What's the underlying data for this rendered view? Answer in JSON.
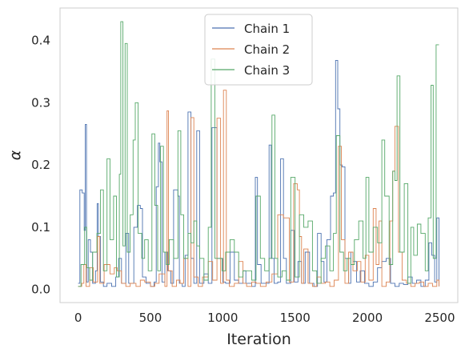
{
  "chart_data": {
    "type": "line",
    "xlabel": "Iteration",
    "ylabel": "α",
    "xlim": [
      -125,
      2625
    ],
    "ylim": [
      -0.021,
      0.452
    ],
    "xticks": [
      0,
      500,
      1000,
      1500,
      2000,
      2500
    ],
    "yticks": [
      0.0,
      0.1,
      0.2,
      0.3,
      0.4
    ],
    "grid": false,
    "legend_position": "top-center",
    "series": [
      {
        "name": "Chain 1",
        "color": "#4c72b0",
        "points": [
          [
            0,
            0.01
          ],
          [
            12,
            0.16
          ],
          [
            28,
            0.155
          ],
          [
            42,
            0.095
          ],
          [
            50,
            0.265
          ],
          [
            58,
            0.012
          ],
          [
            70,
            0.08
          ],
          [
            85,
            0.06
          ],
          [
            100,
            0.01
          ],
          [
            120,
            0.03
          ],
          [
            132,
            0.138
          ],
          [
            140,
            0.085
          ],
          [
            155,
            0.012
          ],
          [
            175,
            0.005
          ],
          [
            200,
            0.01
          ],
          [
            232,
            0.005
          ],
          [
            260,
            0.02
          ],
          [
            280,
            0.05
          ],
          [
            300,
            0.01
          ],
          [
            330,
            0.09
          ],
          [
            350,
            0.01
          ],
          [
            385,
            0.1
          ],
          [
            410,
            0.135
          ],
          [
            430,
            0.13
          ],
          [
            445,
            0.02
          ],
          [
            470,
            0.01
          ],
          [
            500,
            0.005
          ],
          [
            525,
            0.012
          ],
          [
            540,
            0.165
          ],
          [
            555,
            0.235
          ],
          [
            565,
            0.205
          ],
          [
            580,
            0.012
          ],
          [
            600,
            0.06
          ],
          [
            620,
            0.03
          ],
          [
            640,
            0.01
          ],
          [
            660,
            0.16
          ],
          [
            690,
            0.15
          ],
          [
            700,
            0.01
          ],
          [
            720,
            0.005
          ],
          [
            740,
            0.055
          ],
          [
            760,
            0.285
          ],
          [
            780,
            0.05
          ],
          [
            800,
            0.01
          ],
          [
            820,
            0.255
          ],
          [
            840,
            0.01
          ],
          [
            870,
            0.025
          ],
          [
            900,
            0.01
          ],
          [
            925,
            0.26
          ],
          [
            960,
            0.05
          ],
          [
            1000,
            0.012
          ],
          [
            1020,
            0.01
          ],
          [
            1050,
            0.06
          ],
          [
            1080,
            0.015
          ],
          [
            1110,
            0.01
          ],
          [
            1140,
            0.03
          ],
          [
            1160,
            0.01
          ],
          [
            1200,
            0.005
          ],
          [
            1225,
            0.18
          ],
          [
            1240,
            0.04
          ],
          [
            1265,
            0.01
          ],
          [
            1300,
            0.01
          ],
          [
            1320,
            0.232
          ],
          [
            1335,
            0.05
          ],
          [
            1355,
            0.01
          ],
          [
            1380,
            0.012
          ],
          [
            1400,
            0.21
          ],
          [
            1420,
            0.05
          ],
          [
            1440,
            0.01
          ],
          [
            1470,
            0.095
          ],
          [
            1495,
            0.012
          ],
          [
            1520,
            0.045
          ],
          [
            1545,
            0.01
          ],
          [
            1570,
            0.06
          ],
          [
            1600,
            0.01
          ],
          [
            1630,
            0.005
          ],
          [
            1655,
            0.09
          ],
          [
            1680,
            0.045
          ],
          [
            1700,
            0.012
          ],
          [
            1720,
            0.08
          ],
          [
            1745,
            0.15
          ],
          [
            1765,
            0.155
          ],
          [
            1780,
            0.368
          ],
          [
            1795,
            0.29
          ],
          [
            1810,
            0.2
          ],
          [
            1825,
            0.197
          ],
          [
            1845,
            0.05
          ],
          [
            1870,
            0.01
          ],
          [
            1885,
            0.06
          ],
          [
            1900,
            0.045
          ],
          [
            1925,
            0.012
          ],
          [
            1950,
            0.03
          ],
          [
            1980,
            0.01
          ],
          [
            2010,
            0.005
          ],
          [
            2040,
            0.012
          ],
          [
            2070,
            0.035
          ],
          [
            2100,
            0.045
          ],
          [
            2130,
            0.05
          ],
          [
            2160,
            0.01
          ],
          [
            2190,
            0.005
          ],
          [
            2220,
            0.01
          ],
          [
            2250,
            0.008
          ],
          [
            2280,
            0.02
          ],
          [
            2310,
            0.01
          ],
          [
            2340,
            0.015
          ],
          [
            2370,
            0.005
          ],
          [
            2400,
            0.015
          ],
          [
            2425,
            0.075
          ],
          [
            2445,
            0.055
          ],
          [
            2465,
            0.012
          ],
          [
            2480,
            0.115
          ],
          [
            2495,
            0.005
          ]
        ]
      },
      {
        "name": "Chain 2",
        "color": "#dd8452",
        "points": [
          [
            0,
            0.005
          ],
          [
            25,
            0.01
          ],
          [
            40,
            0.04
          ],
          [
            55,
            0.005
          ],
          [
            80,
            0.035
          ],
          [
            105,
            0.012
          ],
          [
            135,
            0.085
          ],
          [
            150,
            0.01
          ],
          [
            180,
            0.04
          ],
          [
            220,
            0.025
          ],
          [
            250,
            0.035
          ],
          [
            270,
            0.03
          ],
          [
            300,
            0.01
          ],
          [
            330,
            0.005
          ],
          [
            360,
            0.01
          ],
          [
            400,
            0.005
          ],
          [
            430,
            0.015
          ],
          [
            460,
            0.012
          ],
          [
            500,
            0.005
          ],
          [
            530,
            0.01
          ],
          [
            560,
            0.025
          ],
          [
            600,
            0.005
          ],
          [
            615,
            0.287
          ],
          [
            625,
            0.03
          ],
          [
            650,
            0.005
          ],
          [
            680,
            0.015
          ],
          [
            705,
            0.01
          ],
          [
            730,
            0.05
          ],
          [
            760,
            0.005
          ],
          [
            780,
            0.276
          ],
          [
            800,
            0.02
          ],
          [
            830,
            0.005
          ],
          [
            860,
            0.02
          ],
          [
            900,
            0.045
          ],
          [
            930,
            0.015
          ],
          [
            960,
            0.275
          ],
          [
            985,
            0.01
          ],
          [
            1005,
            0.32
          ],
          [
            1025,
            0.015
          ],
          [
            1045,
            0.005
          ],
          [
            1080,
            0.01
          ],
          [
            1110,
            0.045
          ],
          [
            1140,
            0.01
          ],
          [
            1165,
            0.005
          ],
          [
            1200,
            0.012
          ],
          [
            1230,
            0.01
          ],
          [
            1260,
            0.005
          ],
          [
            1300,
            0.012
          ],
          [
            1340,
            0.025
          ],
          [
            1380,
            0.12
          ],
          [
            1420,
            0.115
          ],
          [
            1460,
            0.012
          ],
          [
            1490,
            0.17
          ],
          [
            1515,
            0.16
          ],
          [
            1530,
            0.085
          ],
          [
            1545,
            0.01
          ],
          [
            1560,
            0.065
          ],
          [
            1590,
            0.01
          ],
          [
            1620,
            0.005
          ],
          [
            1650,
            0.02
          ],
          [
            1680,
            0.01
          ],
          [
            1710,
            0.012
          ],
          [
            1740,
            0.005
          ],
          [
            1770,
            0.015
          ],
          [
            1800,
            0.23
          ],
          [
            1820,
            0.08
          ],
          [
            1845,
            0.01
          ],
          [
            1870,
            0.06
          ],
          [
            1900,
            0.03
          ],
          [
            1930,
            0.045
          ],
          [
            1955,
            0.012
          ],
          [
            1985,
            0.055
          ],
          [
            2010,
            0.015
          ],
          [
            2040,
            0.13
          ],
          [
            2060,
            0.04
          ],
          [
            2080,
            0.11
          ],
          [
            2100,
            0.005
          ],
          [
            2130,
            0.012
          ],
          [
            2155,
            0.11
          ],
          [
            2175,
            0.19
          ],
          [
            2190,
            0.262
          ],
          [
            2215,
            0.06
          ],
          [
            2240,
            0.015
          ],
          [
            2270,
            0.01
          ],
          [
            2300,
            0.005
          ],
          [
            2330,
            0.01
          ],
          [
            2360,
            0.012
          ],
          [
            2390,
            0.005
          ],
          [
            2420,
            0.01
          ],
          [
            2450,
            0.005
          ],
          [
            2480,
            0.015
          ],
          [
            2495,
            0.005
          ]
        ]
      },
      {
        "name": "Chain 3",
        "color": "#55a868",
        "points": [
          [
            0,
            0.005
          ],
          [
            20,
            0.04
          ],
          [
            45,
            0.1
          ],
          [
            60,
            0.035
          ],
          [
            80,
            0.015
          ],
          [
            100,
            0.06
          ],
          [
            130,
            0.09
          ],
          [
            155,
            0.16
          ],
          [
            175,
            0.03
          ],
          [
            200,
            0.21
          ],
          [
            220,
            0.08
          ],
          [
            245,
            0.15
          ],
          [
            265,
            0.02
          ],
          [
            285,
            0.185
          ],
          [
            295,
            0.43
          ],
          [
            310,
            0.07
          ],
          [
            325,
            0.395
          ],
          [
            340,
            0.06
          ],
          [
            360,
            0.12
          ],
          [
            380,
            0.24
          ],
          [
            395,
            0.3
          ],
          [
            415,
            0.09
          ],
          [
            440,
            0.05
          ],
          [
            460,
            0.08
          ],
          [
            485,
            0.03
          ],
          [
            510,
            0.25
          ],
          [
            530,
            0.135
          ],
          [
            550,
            0.03
          ],
          [
            570,
            0.23
          ],
          [
            590,
            0.06
          ],
          [
            610,
            0.04
          ],
          [
            630,
            0.08
          ],
          [
            660,
            0.05
          ],
          [
            690,
            0.255
          ],
          [
            710,
            0.12
          ],
          [
            730,
            0.05
          ],
          [
            760,
            0.09
          ],
          [
            780,
            0.075
          ],
          [
            800,
            0.11
          ],
          [
            820,
            0.07
          ],
          [
            840,
            0.05
          ],
          [
            870,
            0.015
          ],
          [
            900,
            0.1
          ],
          [
            920,
            0.37
          ],
          [
            945,
            0.05
          ],
          [
            970,
            0.05
          ],
          [
            995,
            0.03
          ],
          [
            1020,
            0.06
          ],
          [
            1050,
            0.08
          ],
          [
            1080,
            0.06
          ],
          [
            1110,
            0.02
          ],
          [
            1140,
            0.03
          ],
          [
            1170,
            0.03
          ],
          [
            1200,
            0.015
          ],
          [
            1230,
            0.15
          ],
          [
            1260,
            0.05
          ],
          [
            1290,
            0.03
          ],
          [
            1320,
            0.05
          ],
          [
            1340,
            0.28
          ],
          [
            1360,
            0.05
          ],
          [
            1380,
            0.02
          ],
          [
            1410,
            0.03
          ],
          [
            1440,
            0.015
          ],
          [
            1470,
            0.18
          ],
          [
            1500,
            0.02
          ],
          [
            1530,
            0.12
          ],
          [
            1560,
            0.1
          ],
          [
            1590,
            0.11
          ],
          [
            1620,
            0.03
          ],
          [
            1650,
            0.01
          ],
          [
            1680,
            0.05
          ],
          [
            1710,
            0.07
          ],
          [
            1740,
            0.03
          ],
          [
            1765,
            0.09
          ],
          [
            1785,
            0.247
          ],
          [
            1810,
            0.06
          ],
          [
            1835,
            0.03
          ],
          [
            1860,
            0.05
          ],
          [
            1885,
            0.04
          ],
          [
            1910,
            0.08
          ],
          [
            1940,
            0.11
          ],
          [
            1970,
            0.05
          ],
          [
            1990,
            0.18
          ],
          [
            2010,
            0.06
          ],
          [
            2040,
            0.1
          ],
          [
            2070,
            0.075
          ],
          [
            2100,
            0.24
          ],
          [
            2120,
            0.15
          ],
          [
            2150,
            0.04
          ],
          [
            2175,
            0.19
          ],
          [
            2190,
            0.175
          ],
          [
            2205,
            0.343
          ],
          [
            2225,
            0.06
          ],
          [
            2255,
            0.17
          ],
          [
            2280,
            0.01
          ],
          [
            2300,
            0.1
          ],
          [
            2320,
            0.055
          ],
          [
            2345,
            0.105
          ],
          [
            2370,
            0.09
          ],
          [
            2400,
            0.03
          ],
          [
            2420,
            0.115
          ],
          [
            2440,
            0.328
          ],
          [
            2455,
            0.05
          ],
          [
            2475,
            0.393
          ],
          [
            2495,
            0.393
          ]
        ]
      }
    ]
  }
}
